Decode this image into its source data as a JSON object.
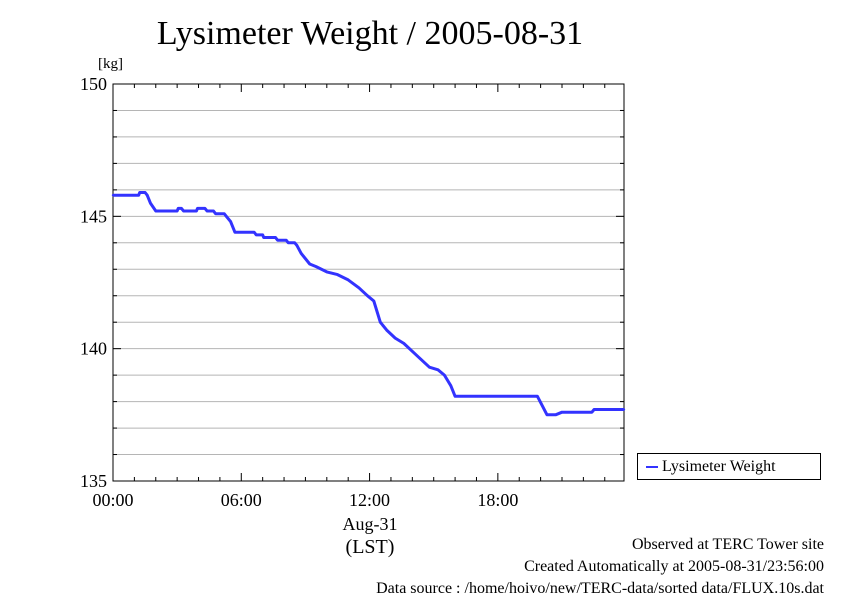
{
  "chart_data": {
    "type": "line",
    "title": "Lysimeter Weight / 2005-08-31",
    "ylabel": "[kg]",
    "ylim": [
      135,
      150
    ],
    "xlim": [
      0,
      23.9
    ],
    "y_ticks": [
      "135",
      "140",
      "145",
      "150"
    ],
    "x_ticks": [
      {
        "x": 0,
        "label": "00:00"
      },
      {
        "x": 6,
        "label": "06:00"
      },
      {
        "x": 12,
        "label": "12:00"
      },
      {
        "x": 18,
        "label": "18:00"
      }
    ],
    "date_label": "Aug-31",
    "x_unit_label": "(LST)",
    "grid": true,
    "legend_position": "right",
    "series": [
      {
        "name": "Lysimeter Weight",
        "color": "#3333ff",
        "x": [
          0,
          1.2,
          1.25,
          1.5,
          1.6,
          1.75,
          2.0,
          2.1,
          3.0,
          3.05,
          3.2,
          3.3,
          3.9,
          3.95,
          4.3,
          4.4,
          4.7,
          4.8,
          5.2,
          5.3,
          5.5,
          5.7,
          5.8,
          6.6,
          6.7,
          7.0,
          7.05,
          7.6,
          7.7,
          8.1,
          8.2,
          8.5,
          8.6,
          8.8,
          9.2,
          9.5,
          10.0,
          10.5,
          11.0,
          11.5,
          11.9,
          12.2,
          12.5,
          12.8,
          13.2,
          13.6,
          14.0,
          14.4,
          14.8,
          15.2,
          15.5,
          15.8,
          16.0,
          16.3,
          16.5,
          17.0,
          17.5,
          18.5,
          19.5,
          19.85,
          20.3,
          20.7,
          21.0,
          21.5,
          22.4,
          22.5,
          23.5,
          23.9
        ],
        "values": [
          145.8,
          145.8,
          145.9,
          145.9,
          145.8,
          145.5,
          145.2,
          145.2,
          145.2,
          145.3,
          145.3,
          145.2,
          145.2,
          145.3,
          145.3,
          145.2,
          145.2,
          145.1,
          145.1,
          145.0,
          144.8,
          144.4,
          144.4,
          144.4,
          144.3,
          144.3,
          144.2,
          144.2,
          144.1,
          144.1,
          144.0,
          144.0,
          143.9,
          143.6,
          143.2,
          143.1,
          142.9,
          142.8,
          142.6,
          142.3,
          142.0,
          141.8,
          141.0,
          140.7,
          140.4,
          140.2,
          139.9,
          139.6,
          139.3,
          139.2,
          139.0,
          138.6,
          138.2,
          138.2,
          138.2,
          138.2,
          138.2,
          138.2,
          138.2,
          138.2,
          137.5,
          137.5,
          137.6,
          137.6,
          137.6,
          137.7,
          137.7,
          137.7
        ]
      }
    ]
  },
  "footer": {
    "line1": "Observed at TERC Tower site",
    "line2": "Created Automatically at 2005-08-31/23:56:00",
    "line3": "Data source : /home/hoivo/new/TERC-data/sorted  data/FLUX.10s.dat"
  }
}
